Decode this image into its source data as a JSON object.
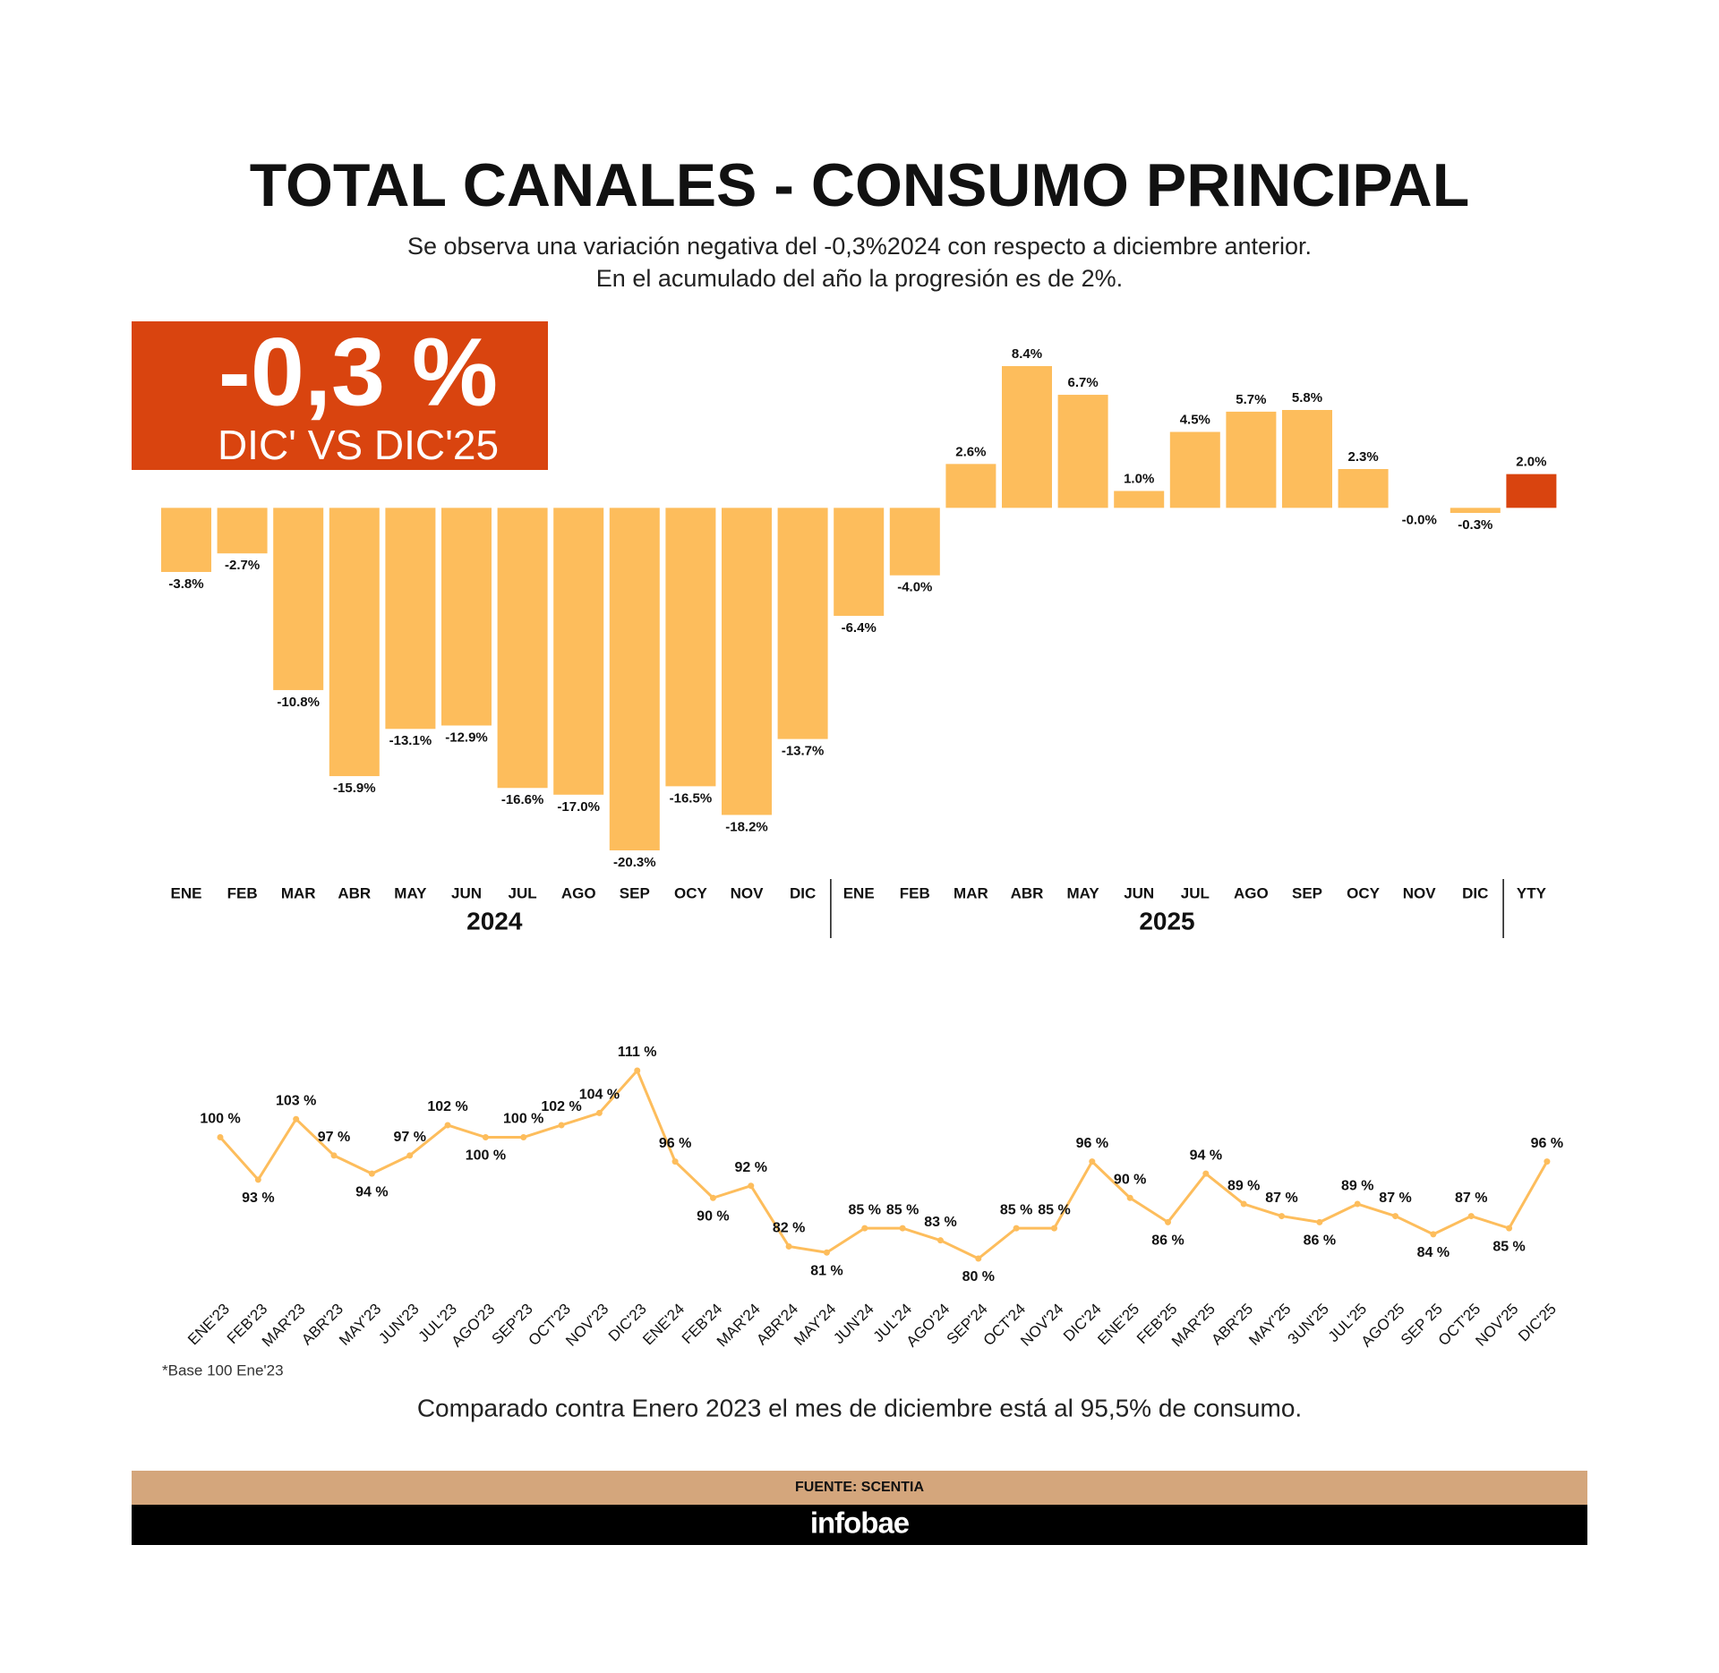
{
  "header": {
    "title": "TOTAL CANALES - CONSUMO PRINCIPAL",
    "subtitle": [
      "Se observa una variación negativa del -0,3%2024 con respecto a diciembre anterior.",
      "En el acumulado del año la progresión es de 2%."
    ]
  },
  "highlight": {
    "value_text": "-0,3 %",
    "caption": "DIC' VS DIC'25"
  },
  "chart_data": [
    {
      "type": "bar",
      "categories": [
        "ENE",
        "FEB",
        "MAR",
        "ABR",
        "MAY",
        "JUN",
        "JUL",
        "AGO",
        "SEP",
        "OCY",
        "NOV",
        "DIC",
        "ENE",
        "FEB",
        "MAR",
        "ABR",
        "MAY",
        "JUN",
        "JUL",
        "AGO",
        "SEP",
        "OCY",
        "NOV",
        "DIC",
        "YTY"
      ],
      "groups": [
        "2024",
        "2025"
      ],
      "values": [
        -3.8,
        -2.7,
        -10.8,
        -15.9,
        -13.1,
        -12.9,
        -16.6,
        -17.0,
        -20.3,
        -16.5,
        -18.2,
        -13.7,
        -6.4,
        -4.0,
        2.6,
        8.4,
        6.7,
        1.0,
        4.5,
        5.7,
        5.8,
        2.3,
        -0.0,
        -0.3,
        2.0
      ],
      "value_labels": [
        "-3.8%",
        "-2.7%",
        "-10.8%",
        "-15.9%",
        "-13.1%",
        "-12.9%",
        "-16.6%",
        "-17.0%",
        "-20.3%",
        "-16.5%",
        "-18.2%",
        "-13.7%",
        "-6.4%",
        "-4.0%",
        "2.6%",
        "8.4%",
        "6.7%",
        "1.0%",
        "4.5%",
        "5.7%",
        "5.8%",
        "2.3%",
        "-0.0%",
        "-0.3%",
        "2.0%"
      ],
      "colors": [
        "#fdbd5c",
        "#fdbd5c",
        "#fdbd5c",
        "#fdbd5c",
        "#fdbd5c",
        "#fdbd5c",
        "#fdbd5c",
        "#fdbd5c",
        "#fdbd5c",
        "#fdbd5c",
        "#fdbd5c",
        "#fdbd5c",
        "#fdbd5c",
        "#fdbd5c",
        "#fdbd5c",
        "#fdbd5c",
        "#fdbd5c",
        "#fdbd5c",
        "#fdbd5c",
        "#fdbd5c",
        "#fdbd5c",
        "#fdbd5c",
        "#fdbd5c",
        "#fdbd5c",
        "#d9440f"
      ]
    },
    {
      "type": "line",
      "categories": [
        "ENE'23",
        "FEB'23",
        "MAR'23",
        "ABR'23",
        "MAY'23",
        "JUN'23",
        "JUL'23",
        "AGO'23",
        "SEP'23",
        "OCT'23",
        "NOV'23",
        "DIC'23",
        "ENE'24",
        "FEB'24",
        "MAR'24",
        "ABR'24",
        "MAY'24",
        "JUN'24",
        "JUL'24",
        "AGO'24",
        "SEP'24",
        "OCT'24",
        "NOV'24",
        "DIC'24",
        "ENE'25",
        "FEB'25",
        "MAR'25",
        "ABR'25",
        "MAY'25",
        "3UN'25",
        "JUL'25",
        "AGO'25",
        "SEP 25",
        "OCT'25",
        "NOV'25",
        "DIC'25"
      ],
      "values": [
        100,
        93,
        103,
        97,
        94,
        97,
        102,
        100,
        100,
        102,
        104,
        111,
        96,
        90,
        92,
        82,
        81,
        85,
        85,
        83,
        80,
        85,
        85,
        96,
        90,
        86,
        94,
        89,
        87,
        86,
        89,
        87,
        84,
        87,
        85,
        96
      ],
      "value_labels": [
        "100 %",
        "93 %",
        "103 %",
        "97 %",
        "94 %",
        "97 %",
        "102 %",
        "100 %",
        "100 %",
        "102 %",
        "104 %",
        "111 %",
        "96 %",
        "90 %",
        "92 %",
        "82 %",
        "81 %",
        "85 %",
        "85 %",
        "83 %",
        "80 %",
        "85 %",
        "85 %",
        "96 %",
        "90 %",
        "86 %",
        "94 %",
        "89 %",
        "87 %",
        "86 %",
        "89 %",
        "87 %",
        "84 %",
        "87 %",
        "85 %",
        "96 %"
      ],
      "color": "#fdbd5c"
    }
  ],
  "footnote": "*Base 100 Ene'23",
  "note": "Comparado contra Enero 2023 el mes de diciembre está al 95,5% de consumo.",
  "footer": {
    "source": "FUENTE: SCENTIA",
    "brand": "infobae"
  }
}
